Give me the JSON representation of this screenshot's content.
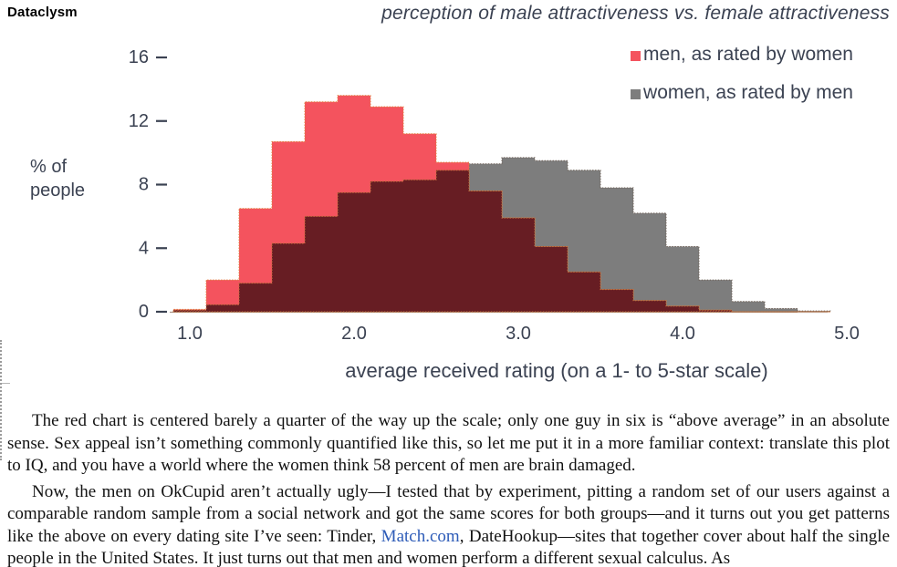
{
  "page": {
    "book_title": "Dataclysm"
  },
  "chart": {
    "title": "perception of male attractiveness vs. female attractiveness",
    "legend": [
      {
        "label": "men, as rated by women",
        "color": "#f4535e"
      },
      {
        "label": "women, as rated by men",
        "color": "#7d7d7d"
      }
    ],
    "y_axis": {
      "label_line1": "% of",
      "label_line2": "people"
    },
    "x_axis": {
      "label": "average received rating (on a 1- to 5-star scale)"
    }
  },
  "chart_data": {
    "type": "bar",
    "subtype": "overlapping-histogram",
    "title": "perception of male attractiveness vs. female attractiveness",
    "xlabel": "average received rating (on a 1- to 5-star scale)",
    "ylabel": "% of people",
    "bin_width": 0.2,
    "bin_centers": [
      1.0,
      1.2,
      1.4,
      1.6,
      1.8,
      2.0,
      2.2,
      2.4,
      2.6,
      2.8,
      3.0,
      3.2,
      3.4,
      3.6,
      3.8,
      4.0,
      4.2,
      4.4,
      4.6,
      4.8
    ],
    "series": [
      {
        "name": "men, as rated by women",
        "color": "#f4535e",
        "values": [
          0.15,
          2.0,
          6.5,
          10.7,
          13.2,
          13.6,
          12.9,
          11.2,
          9.4,
          7.6,
          5.9,
          4.1,
          2.5,
          1.4,
          0.7,
          0.35,
          0.1,
          0,
          0,
          0
        ]
      },
      {
        "name": "women, as rated by men",
        "color": "#7d7d7d",
        "values": [
          0.1,
          0.45,
          1.8,
          4.3,
          6.0,
          7.5,
          8.2,
          8.3,
          8.9,
          9.3,
          9.7,
          9.5,
          8.9,
          7.8,
          6.2,
          4.1,
          2.0,
          0.65,
          0.2,
          0.05
        ]
      }
    ],
    "overlap_color": "#671d23",
    "xlim": [
      0.9,
      5.0
    ],
    "ylim": [
      0,
      16
    ],
    "x_ticks": [
      "1.0",
      "2.0",
      "3.0",
      "4.0",
      "5.0"
    ],
    "x_tick_values": [
      1.0,
      2.0,
      3.0,
      4.0,
      5.0
    ],
    "y_ticks": [
      0,
      4,
      8,
      12,
      16
    ],
    "grid": false,
    "legend_position": "top-right",
    "axis_color": "#3b4252"
  },
  "body": {
    "paragraphs": [
      {
        "parts": [
          {
            "text": "The red chart is centered barely a quarter of the way up the scale; only one guy in six is “above average” in an absolute sense. Sex appeal isn’t something commonly quantified like this, so let me put it in a more familiar context: translate this plot to IQ, and you have a world where the women think 58 percent of men are brain damaged."
          }
        ]
      },
      {
        "parts": [
          {
            "text": "Now, the men on OkCupid aren’t actually ugly—I tested that by experiment, pitting a random set of our users against a comparable random sample from a social network and got the same scores for both groups—and it turns out you get patterns like the above on every dating site I’ve seen: Tinder, "
          },
          {
            "text": "Match.com",
            "style": "link"
          },
          {
            "text": ", DateHookup—sites that together cover about half the single people in the United States. It just turns out that men and women perform a different sexual calculus. As"
          }
        ]
      }
    ]
  }
}
